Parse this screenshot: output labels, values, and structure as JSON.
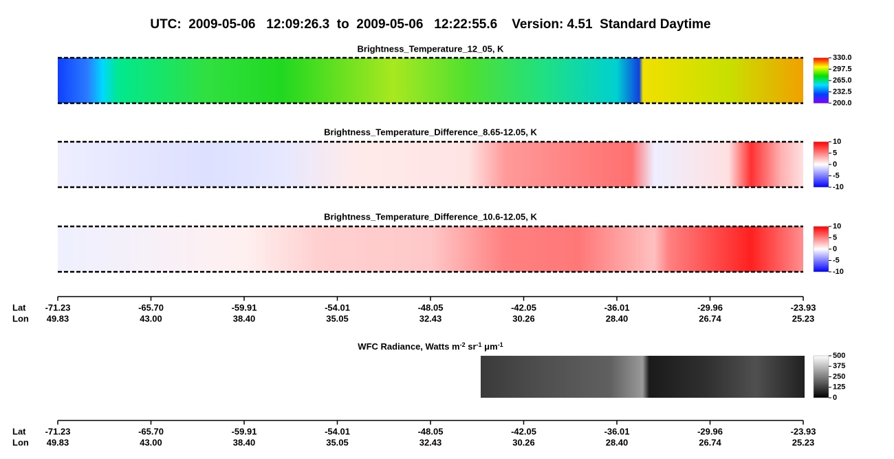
{
  "title": "UTC:  2009-05-06   12:09:26.3  to  2009-05-06   12:22:55.6    Version: 4.51  Standard Daytime",
  "chart_data": [
    {
      "type": "image",
      "title": "Brightness_Temperature_12_05, K",
      "colorbar": {
        "ylim": [
          200,
          330
        ],
        "yticks": [
          {
            "value": 200,
            "label": "200.0"
          },
          232.5,
          {
            "value": 265,
            "label": "265.0"
          },
          297.5,
          {
            "value": 330,
            "label": "330.0"
          }
        ]
      }
    },
    {
      "type": "image",
      "title": "Brightness_Temperature_Difference_8.65-12.05, K",
      "colorbar": {
        "ylim": [
          -10,
          10
        ],
        "yticks": [
          -10,
          -5,
          0,
          5,
          10
        ]
      }
    },
    {
      "type": "image",
      "title": "Brightness_Temperature_Difference_10.6-12.05, K",
      "colorbar": {
        "ylim": [
          -10,
          10
        ],
        "yticks": [
          -10,
          -5,
          0,
          5,
          10
        ]
      }
    },
    {
      "type": "image",
      "title_parts": [
        "WFC Radiance, Watts m",
        "-2",
        " sr",
        "-1",
        " μm",
        "-1"
      ],
      "colorbar": {
        "ylim": [
          0,
          500
        ],
        "yticks": [
          0,
          125,
          250,
          375,
          500
        ]
      }
    }
  ],
  "axes": [
    {
      "row_labels": [
        "Lat",
        "Lon"
      ],
      "lat": [
        -71.23,
        {
          "value": -65.7,
          "label": "-65.70"
        },
        -59.91,
        -54.01,
        -48.05,
        -42.05,
        -36.01,
        -29.96,
        -23.93
      ],
      "lon": [
        49.83,
        {
          "value": 43,
          "label": "43.00"
        },
        {
          "value": 38.4,
          "label": "38.40"
        },
        35.05,
        32.43,
        30.26,
        {
          "value": 28.4,
          "label": "28.40"
        },
        26.74,
        25.23
      ]
    },
    {
      "row_labels": [
        "Lat",
        "Lon"
      ],
      "lat": [
        -71.23,
        {
          "value": -65.7,
          "label": "-65.70"
        },
        -59.91,
        -54.01,
        -48.05,
        -42.05,
        -36.01,
        -29.96,
        -23.93
      ],
      "lon": [
        49.83,
        {
          "value": 43,
          "label": "43.00"
        },
        {
          "value": 38.4,
          "label": "38.40"
        },
        35.05,
        32.43,
        30.26,
        {
          "value": 28.4,
          "label": "28.40"
        },
        26.74,
        25.23
      ]
    }
  ]
}
